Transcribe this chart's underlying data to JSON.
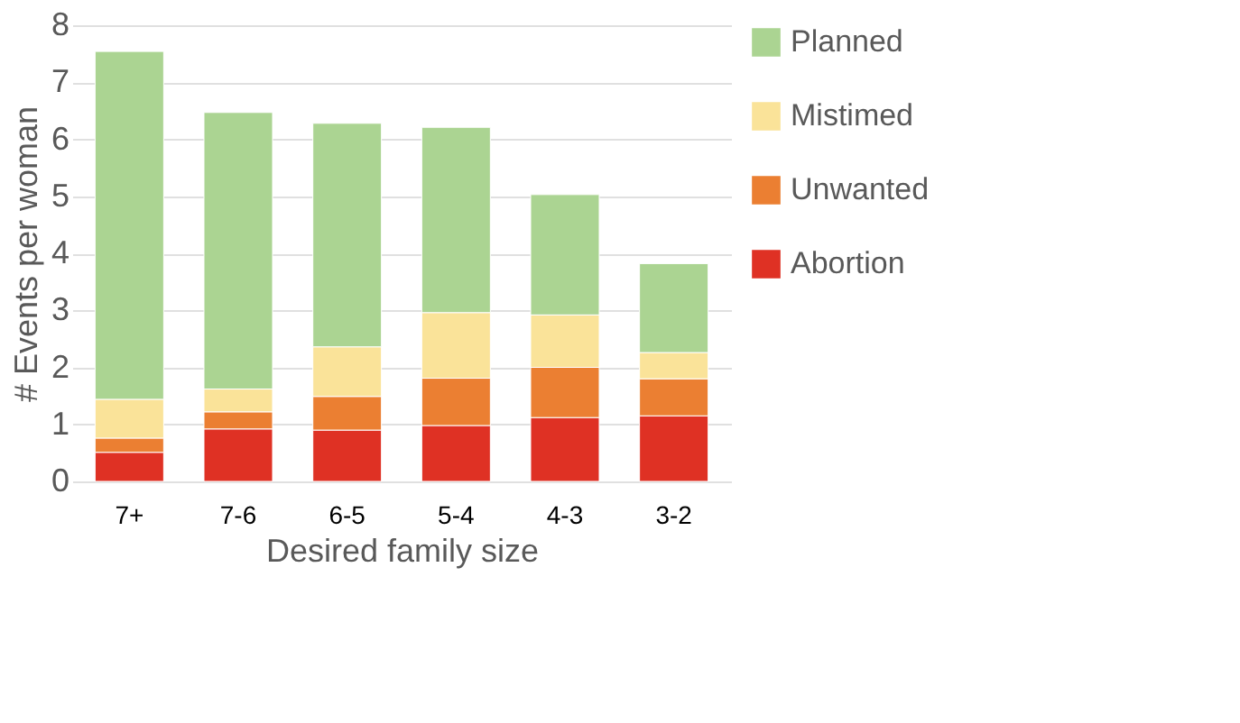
{
  "chart_data": {
    "type": "bar",
    "stacked": true,
    "xlabel": "Desired family size",
    "ylabel": "# Events per woman",
    "categories": [
      "7+",
      "7-6",
      "6-5",
      "5-4",
      "4-3",
      "3-2"
    ],
    "series": [
      {
        "name": "Abortion",
        "color": "#df3124",
        "values": [
          0.51,
          0.92,
          0.9,
          0.98,
          1.12,
          1.15
        ]
      },
      {
        "name": "Unwanted",
        "color": "#eb7f32",
        "values": [
          0.25,
          0.3,
          0.59,
          0.83,
          0.88,
          0.65
        ]
      },
      {
        "name": "Mistimed",
        "color": "#fae399",
        "values": [
          0.68,
          0.4,
          0.87,
          1.15,
          0.92,
          0.46
        ]
      },
      {
        "name": "Planned",
        "color": "#abd492",
        "values": [
          6.1,
          4.85,
          3.92,
          3.25,
          2.11,
          1.56
        ]
      }
    ],
    "ylim": [
      0,
      8
    ],
    "yticks": [
      0,
      1,
      2,
      3,
      4,
      5,
      6,
      7,
      8
    ],
    "grid": "y",
    "legend": "right"
  }
}
